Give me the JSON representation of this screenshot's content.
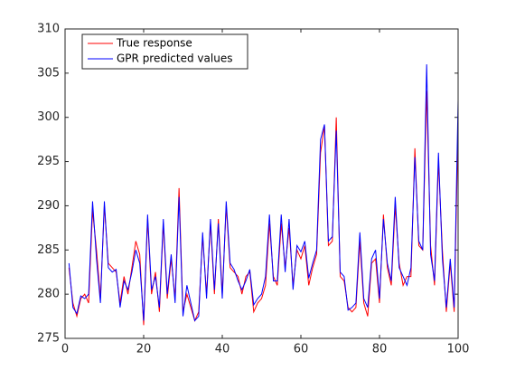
{
  "chart_data": {
    "type": "line",
    "x": [
      1,
      2,
      3,
      4,
      5,
      6,
      7,
      8,
      9,
      10,
      11,
      12,
      13,
      14,
      15,
      16,
      17,
      18,
      19,
      20,
      21,
      22,
      23,
      24,
      25,
      26,
      27,
      28,
      29,
      30,
      31,
      32,
      33,
      34,
      35,
      36,
      37,
      38,
      39,
      40,
      41,
      42,
      43,
      44,
      45,
      46,
      47,
      48,
      49,
      50,
      51,
      52,
      53,
      54,
      55,
      56,
      57,
      58,
      59,
      60,
      61,
      62,
      63,
      64,
      65,
      66,
      67,
      68,
      69,
      70,
      71,
      72,
      73,
      74,
      75,
      76,
      77,
      78,
      79,
      80,
      81,
      82,
      83,
      84,
      85,
      86,
      87,
      88,
      89,
      90,
      91,
      92,
      93,
      94,
      95,
      96,
      97,
      98,
      99,
      100
    ],
    "series": [
      {
        "name": "True response",
        "color": "#ff0000",
        "values": [
          283,
          279,
          277.5,
          279.5,
          280,
          279,
          289.5,
          285,
          279.5,
          290,
          283.5,
          283,
          282.5,
          279,
          282,
          280,
          283,
          286,
          284.5,
          276.5,
          288.5,
          280,
          282.5,
          278,
          288,
          279.5,
          284,
          279.5,
          292,
          278,
          280,
          278.5,
          277,
          278,
          286.5,
          280,
          288,
          280,
          288.5,
          280,
          290,
          283,
          282.5,
          282,
          280,
          282,
          282.5,
          278,
          279,
          279.5,
          281,
          288,
          282,
          281,
          288,
          283,
          287.5,
          281,
          285,
          284,
          285.5,
          281,
          283,
          284.5,
          296,
          299,
          285.5,
          286,
          300,
          282,
          281.5,
          278.5,
          278,
          278.5,
          286,
          279,
          277.5,
          283.5,
          284,
          279,
          289,
          283,
          281,
          290,
          283.5,
          281,
          282,
          282,
          296.5,
          285.5,
          285,
          303,
          285.5,
          281,
          295,
          285,
          278,
          283.5,
          278,
          299
        ]
      },
      {
        "name": "GPR predicted values",
        "color": "#0000ff",
        "values": [
          283.5,
          278.5,
          277.8,
          279.8,
          279.5,
          280,
          290.5,
          284,
          279,
          290.5,
          283,
          282.5,
          282.8,
          278.5,
          281.5,
          280.5,
          282.5,
          285,
          283.5,
          277,
          289,
          280.5,
          282,
          278.5,
          288.5,
          280,
          284.5,
          279,
          291,
          277.5,
          281,
          279,
          277,
          277.5,
          287,
          279.5,
          288.5,
          280.5,
          288,
          279.5,
          290.5,
          283.5,
          282.8,
          281.5,
          280.5,
          281.5,
          282.8,
          278.8,
          279.5,
          280,
          282,
          289,
          281.5,
          281.5,
          289,
          282.5,
          288.5,
          280.5,
          285.5,
          284.8,
          286,
          281.8,
          283.5,
          285,
          297.5,
          299.2,
          286,
          286.5,
          298.5,
          282.5,
          282,
          278.2,
          278.5,
          279,
          287,
          279.5,
          278.5,
          284,
          285,
          279.5,
          288.5,
          283.5,
          281.5,
          291,
          283,
          282,
          281,
          283,
          295.5,
          286,
          285,
          306,
          284.5,
          281.5,
          296,
          284,
          278.5,
          284,
          278.5,
          302
        ]
      }
    ],
    "xlim": [
      0,
      100
    ],
    "xticks": [
      0,
      20,
      40,
      60,
      80,
      100
    ],
    "ylim": [
      275,
      310
    ],
    "yticks": [
      275,
      280,
      285,
      290,
      295,
      300,
      305,
      310
    ],
    "legend": "upper left"
  }
}
